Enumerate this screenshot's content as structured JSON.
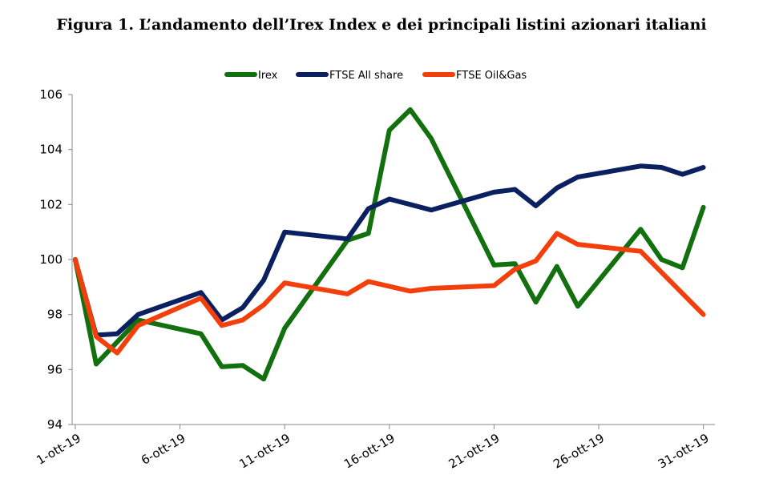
{
  "chart_data": {
    "type": "line",
    "title": "Figura 1. L’andamento dell’Irex Index e dei principali listini azionari italiani",
    "xlabel": "",
    "ylabel": "",
    "ylim": [
      94,
      106
    ],
    "yticks": [
      "94",
      "96",
      "98",
      "100",
      "102",
      "104",
      "106"
    ],
    "x_start": "2019-10-01",
    "x_end": "2019-10-31",
    "xticks": [
      {
        "label": "1-ott-19",
        "day": 1
      },
      {
        "label": "6-ott-19",
        "day": 6
      },
      {
        "label": "11-ott-19",
        "day": 11
      },
      {
        "label": "16-ott-19",
        "day": 16
      },
      {
        "label": "21-ott-19",
        "day": 21
      },
      {
        "label": "26-ott-19",
        "day": 26
      },
      {
        "label": "31-ott-19",
        "day": 31
      }
    ],
    "grid": false,
    "legend_position": "top",
    "series": [
      {
        "name": "Irex",
        "color": "#13700f",
        "points": [
          [
            1,
            100.0
          ],
          [
            2,
            96.2
          ],
          [
            4,
            97.8
          ],
          [
            7,
            97.3
          ],
          [
            8,
            96.1
          ],
          [
            9,
            96.15
          ],
          [
            10,
            95.65
          ],
          [
            11,
            97.5
          ],
          [
            14,
            100.7
          ],
          [
            15,
            100.95
          ],
          [
            16,
            104.7
          ],
          [
            17,
            105.45
          ],
          [
            18,
            104.4
          ],
          [
            21,
            99.8
          ],
          [
            22,
            99.85
          ],
          [
            23,
            98.45
          ],
          [
            24,
            99.75
          ],
          [
            25,
            98.3
          ],
          [
            28,
            101.1
          ],
          [
            29,
            100.0
          ],
          [
            30,
            99.7
          ],
          [
            31,
            101.9
          ]
        ]
      },
      {
        "name": "FTSE All share",
        "color": "#0b2061",
        "points": [
          [
            1,
            100.0
          ],
          [
            2,
            97.25
          ],
          [
            3,
            97.3
          ],
          [
            4,
            98.0
          ],
          [
            7,
            98.8
          ],
          [
            8,
            97.8
          ],
          [
            9,
            98.25
          ],
          [
            10,
            99.25
          ],
          [
            11,
            101.0
          ],
          [
            14,
            100.75
          ],
          [
            15,
            101.85
          ],
          [
            16,
            102.2
          ],
          [
            17,
            102.0
          ],
          [
            18,
            101.8
          ],
          [
            21,
            102.45
          ],
          [
            22,
            102.55
          ],
          [
            23,
            101.95
          ],
          [
            24,
            102.6
          ],
          [
            25,
            103.0
          ],
          [
            28,
            103.4
          ],
          [
            29,
            103.35
          ],
          [
            30,
            103.1
          ],
          [
            31,
            103.35
          ]
        ]
      },
      {
        "name": "FTSE Oil&Gas",
        "color": "#f23f0c",
        "points": [
          [
            1,
            100.0
          ],
          [
            2,
            97.2
          ],
          [
            3,
            96.6
          ],
          [
            4,
            97.6
          ],
          [
            7,
            98.6
          ],
          [
            8,
            97.6
          ],
          [
            9,
            97.8
          ],
          [
            10,
            98.35
          ],
          [
            11,
            99.15
          ],
          [
            14,
            98.75
          ],
          [
            15,
            99.2
          ],
          [
            17,
            98.85
          ],
          [
            18,
            98.95
          ],
          [
            21,
            99.05
          ],
          [
            22,
            99.65
          ],
          [
            23,
            99.95
          ],
          [
            24,
            100.95
          ],
          [
            25,
            100.55
          ],
          [
            28,
            100.3
          ],
          [
            31,
            98.0
          ]
        ]
      }
    ]
  }
}
